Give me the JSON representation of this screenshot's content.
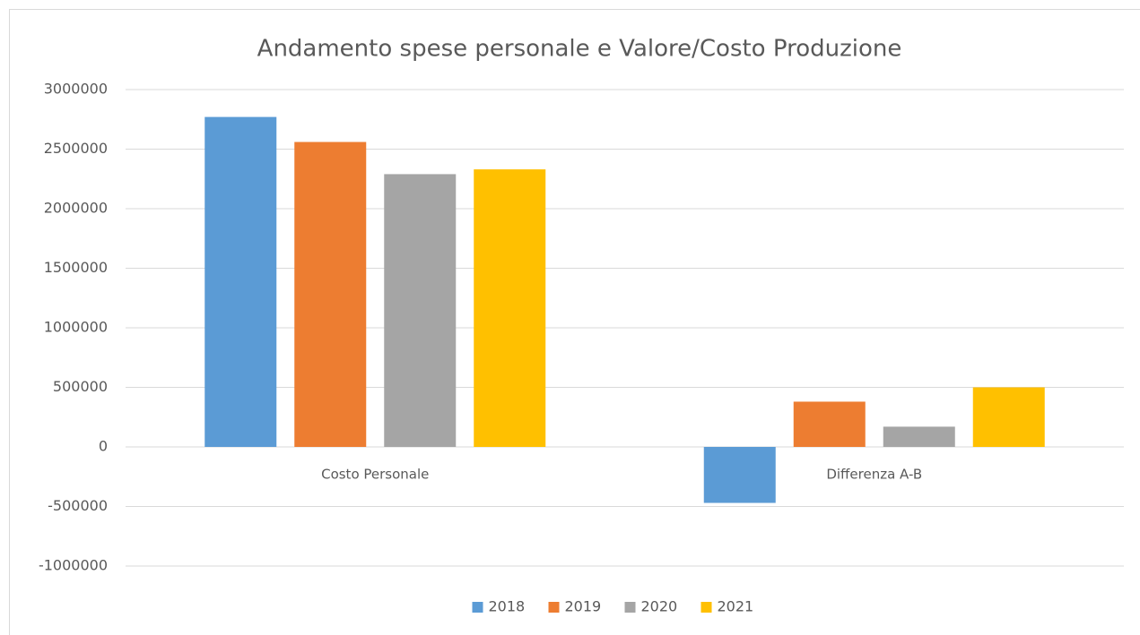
{
  "chart_data": {
    "type": "bar",
    "title": "Andamento spese personale e Valore/Costo Produzione",
    "categories": [
      "Costo Personale",
      "Differenza A-B"
    ],
    "series": [
      {
        "name": "2018",
        "color": "#5b9bd5",
        "values": [
          2770000,
          -470000
        ]
      },
      {
        "name": "2019",
        "color": "#ed7d31",
        "values": [
          2560000,
          380000
        ]
      },
      {
        "name": "2020",
        "color": "#a5a5a5",
        "values": [
          2290000,
          170000
        ]
      },
      {
        "name": "2021",
        "color": "#ffc000",
        "values": [
          2330000,
          500000
        ]
      }
    ],
    "ylim": [
      -1000000,
      3000000
    ],
    "yticks": [
      -1000000,
      -500000,
      0,
      500000,
      1000000,
      1500000,
      2000000,
      2500000,
      3000000
    ],
    "grid": true,
    "legend": "bottom"
  }
}
